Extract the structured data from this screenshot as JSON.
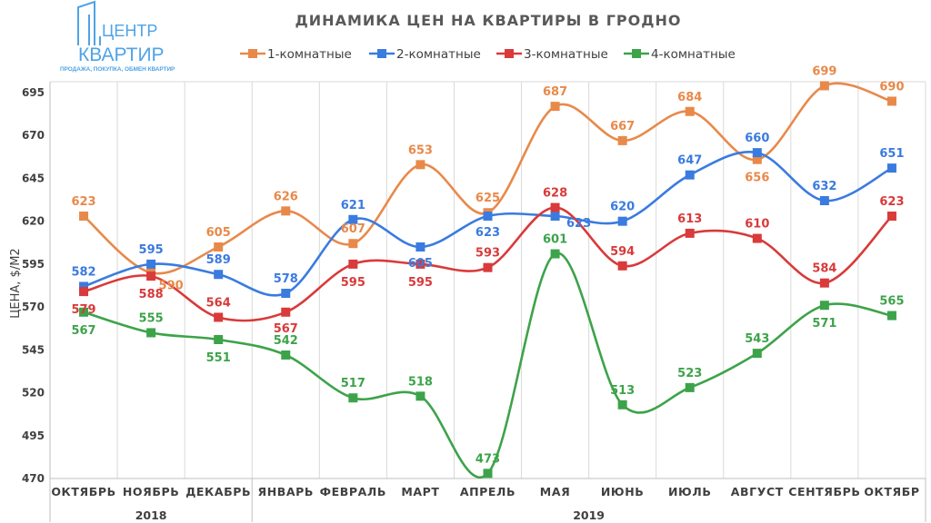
{
  "logo": {
    "line1": "ЦЕНТР",
    "line2": "КВАРТИР",
    "tagline": "ПРОДАЖА, ПОКУПКА, ОБМЕН КВАРТИР"
  },
  "colors": {
    "series_1": "#E8894A",
    "series_2": "#3A7BE0",
    "series_3": "#D93A3A",
    "series_4": "#3DA34A",
    "logo": "#4FA3E6",
    "grid": "#D9D9D9",
    "text": "#404040"
  },
  "chart_data": {
    "type": "line",
    "title": "ДИНАМИКА ЦЕН НА КВАРТИРЫ В ГРОДНО",
    "ylabel": "ЦЕНА, $/М2",
    "xlabel": "",
    "categories": [
      "ОКТЯБРЬ",
      "НОЯБРЬ",
      "ДЕКАБРЬ",
      "ЯНВАРЬ",
      "ФЕВРАЛЬ",
      "МАРТ",
      "АПРЕЛЬ",
      "МАЯ",
      "ИЮНЬ",
      "ИЮЛЬ",
      "АВГУСТ",
      "СЕНТЯБРЬ",
      "ОКТЯБР"
    ],
    "year_groups": [
      {
        "label": "2018",
        "from": 0,
        "to": 2
      },
      {
        "label": "2019",
        "from": 3,
        "to": 12
      }
    ],
    "ylim": [
      470,
      695
    ],
    "yticks": [
      470,
      495,
      520,
      545,
      570,
      595,
      620,
      645,
      670,
      695
    ],
    "grid": "vertical",
    "legend": "top",
    "series": [
      {
        "name": "1-комнатные",
        "values": [
          623,
          590,
          605,
          626,
          607,
          653,
          625,
          687,
          667,
          684,
          656,
          699,
          690
        ]
      },
      {
        "name": "2-комнатные",
        "values": [
          582,
          595,
          589,
          578,
          621,
          605,
          623,
          623,
          620,
          647,
          660,
          632,
          651
        ]
      },
      {
        "name": "3-комнатные",
        "values": [
          579,
          588,
          564,
          567,
          595,
          595,
          593,
          628,
          594,
          613,
          610,
          584,
          623
        ]
      },
      {
        "name": "4-комнатные",
        "values": [
          567,
          555,
          551,
          542,
          517,
          518,
          473,
          601,
          513,
          523,
          543,
          571,
          565
        ]
      }
    ]
  }
}
